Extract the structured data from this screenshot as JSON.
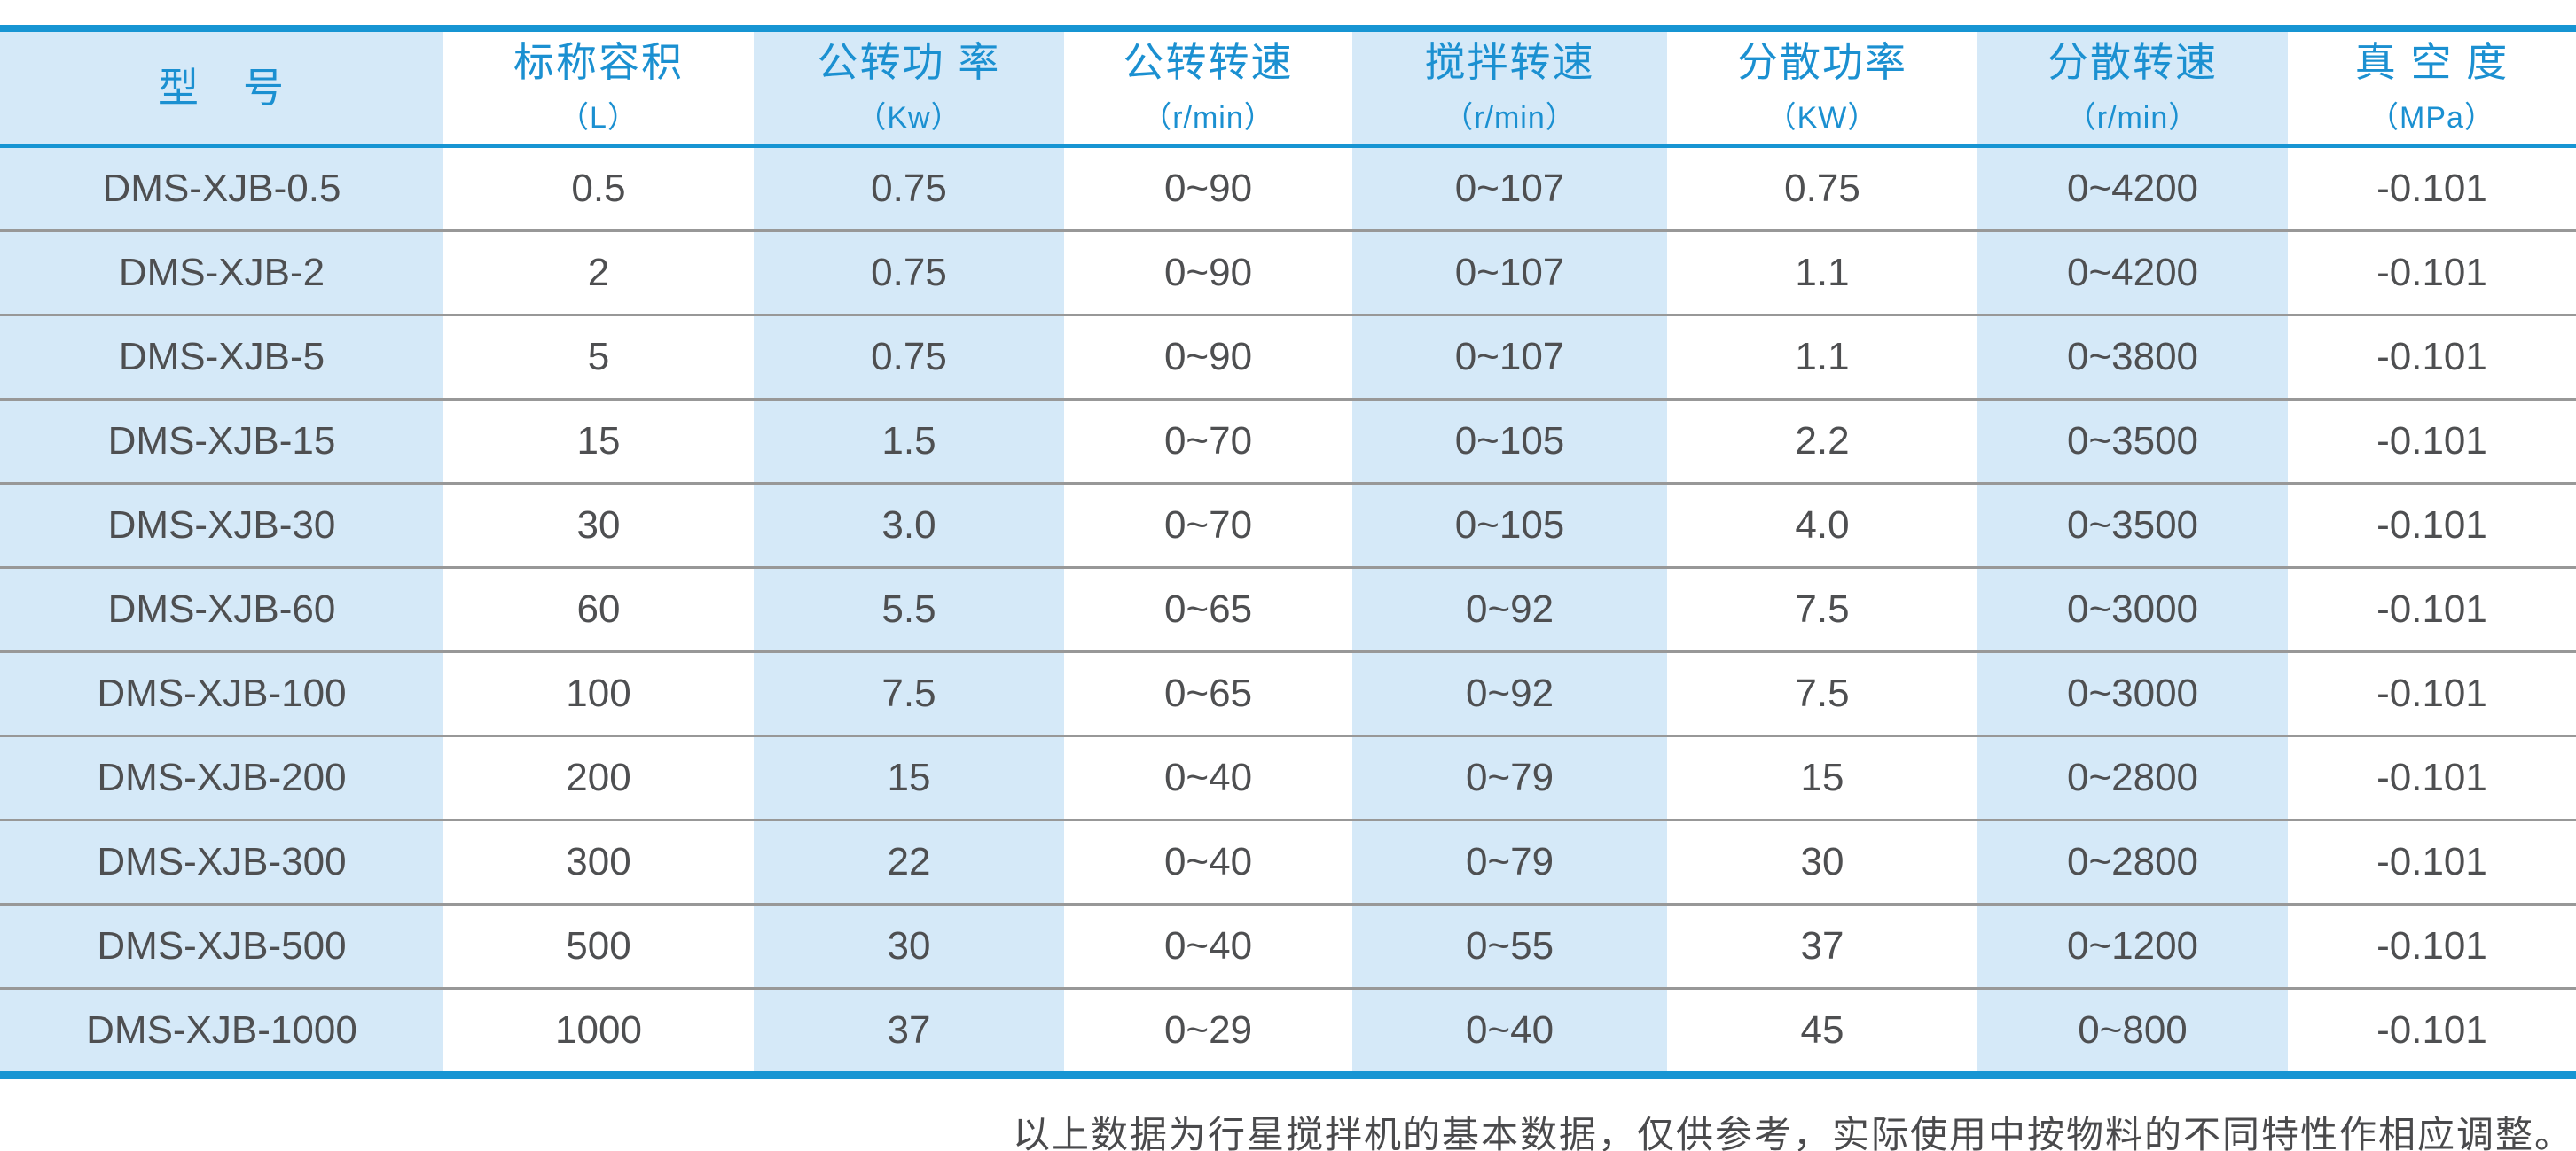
{
  "colors": {
    "accent_blue": "#1795d3",
    "header_text_blue": "#1b90d1",
    "striped_cell_blue": "#d5e9f8",
    "data_text_gray": "#4e4f51",
    "row_divider_gray": "#989898"
  },
  "table": {
    "columns": [
      {
        "title": "型　号",
        "unit": ""
      },
      {
        "title": "标称容积",
        "unit": "（L）"
      },
      {
        "title": "公转功 率",
        "unit": "（Kw）"
      },
      {
        "title": "公转转速",
        "unit": "（r/min）"
      },
      {
        "title": "搅拌转速",
        "unit": "（r/min）"
      },
      {
        "title": "分散功率",
        "unit": "（KW）"
      },
      {
        "title": "分散转速",
        "unit": "（r/min）"
      },
      {
        "title": "真 空 度",
        "unit": "（MPa）"
      }
    ],
    "rows": [
      [
        "DMS-XJB-0.5",
        "0.5",
        "0.75",
        "0~90",
        "0~107",
        "0.75",
        "0~4200",
        "-0.101"
      ],
      [
        "DMS-XJB-2",
        "2",
        "0.75",
        "0~90",
        "0~107",
        "1.1",
        "0~4200",
        "-0.101"
      ],
      [
        "DMS-XJB-5",
        "5",
        "0.75",
        "0~90",
        "0~107",
        "1.1",
        "0~3800",
        "-0.101"
      ],
      [
        "DMS-XJB-15",
        "15",
        "1.5",
        "0~70",
        "0~105",
        "2.2",
        "0~3500",
        "-0.101"
      ],
      [
        "DMS-XJB-30",
        "30",
        "3.0",
        "0~70",
        "0~105",
        "4.0",
        "0~3500",
        "-0.101"
      ],
      [
        "DMS-XJB-60",
        "60",
        "5.5",
        "0~65",
        "0~92",
        "7.5",
        "0~3000",
        "-0.101"
      ],
      [
        "DMS-XJB-100",
        "100",
        "7.5",
        "0~65",
        "0~92",
        "7.5",
        "0~3000",
        "-0.101"
      ],
      [
        "DMS-XJB-200",
        "200",
        "15",
        "0~40",
        "0~79",
        "15",
        "0~2800",
        "-0.101"
      ],
      [
        "DMS-XJB-300",
        "300",
        "22",
        "0~40",
        "0~79",
        "30",
        "0~2800",
        "-0.101"
      ],
      [
        "DMS-XJB-500",
        "500",
        "30",
        "0~40",
        "0~55",
        "37",
        "0~1200",
        "-0.101"
      ],
      [
        "DMS-XJB-1000",
        "1000",
        "37",
        "0~29",
        "0~40",
        "45",
        "0~800",
        "-0.101"
      ]
    ]
  },
  "footer": {
    "note": "以上数据为行星搅拌机的基本数据，仅供参考，实际使用中按物料的不同特性作相应调整。"
  }
}
